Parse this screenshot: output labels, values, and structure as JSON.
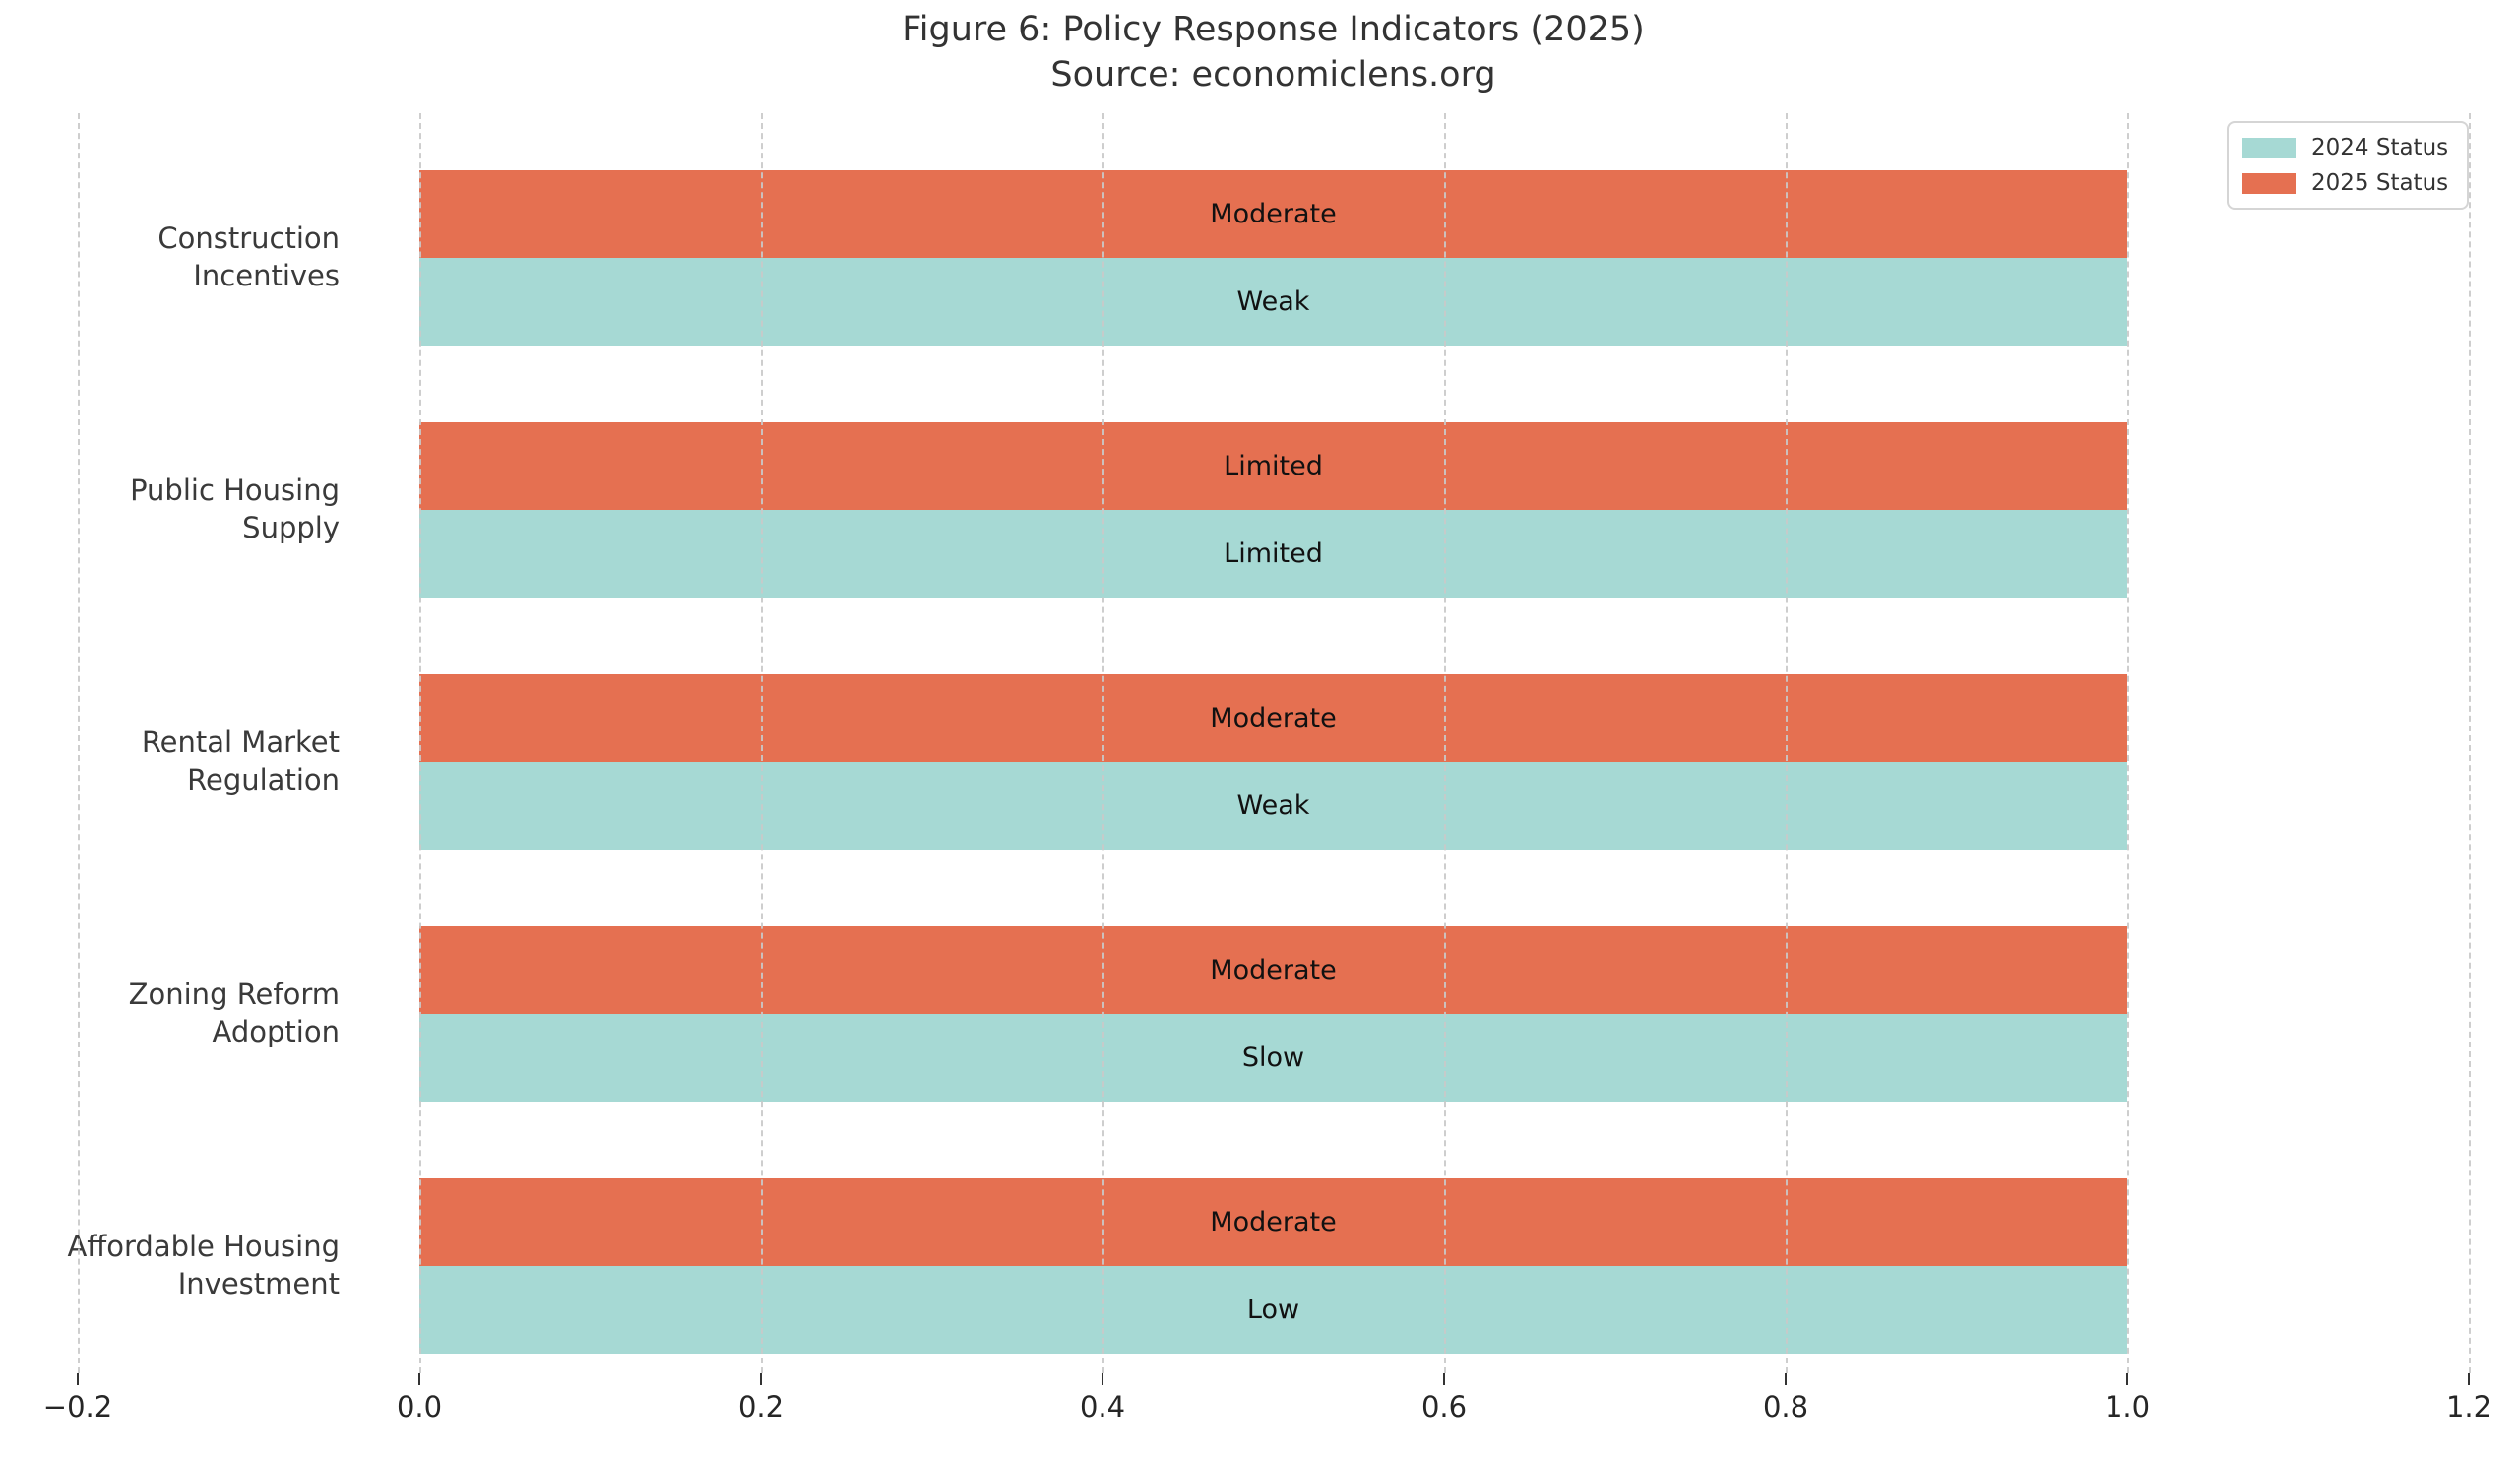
{
  "title": "Figure 6: Policy Response Indicators (2025)",
  "subtitle": "Source: economiclens.org",
  "legend": {
    "position": "upper right",
    "items": [
      {
        "label": "2024 Status",
        "color": "#a6d9d4"
      },
      {
        "label": "2025 Status",
        "color": "#e57051"
      }
    ]
  },
  "chart_data": {
    "type": "bar",
    "orientation": "horizontal",
    "title": "Figure 6: Policy Response Indicators (2025)",
    "subtitle": "Source: economiclens.org",
    "categories": [
      "Construction Incentives",
      "Public Housing Supply",
      "Rental Market Regulation",
      "Zoning Reform Adoption",
      "Affordable Housing Investment"
    ],
    "series": [
      {
        "name": "2025 Status",
        "color": "#e57051",
        "values": [
          1.0,
          1.0,
          1.0,
          1.0,
          1.0
        ],
        "bar_labels": [
          "Moderate",
          "Limited",
          "Moderate",
          "Moderate",
          "Moderate"
        ]
      },
      {
        "name": "2024 Status",
        "color": "#a6d9d4",
        "values": [
          1.0,
          1.0,
          1.0,
          1.0,
          1.0
        ],
        "bar_labels": [
          "Weak",
          "Limited",
          "Weak",
          "Slow",
          "Low"
        ]
      }
    ],
    "bar_start": 0.0,
    "xlim": [
      -0.2,
      1.2
    ],
    "xticks": [
      -0.2,
      0.0,
      0.2,
      0.4,
      0.6,
      0.8,
      1.0,
      1.2
    ],
    "xtick_labels": [
      "−0.2",
      "0.0",
      "0.2",
      "0.4",
      "0.6",
      "0.8",
      "1.0",
      "1.2"
    ],
    "grid": "vertical-dashed",
    "legend_position": "upper right"
  }
}
